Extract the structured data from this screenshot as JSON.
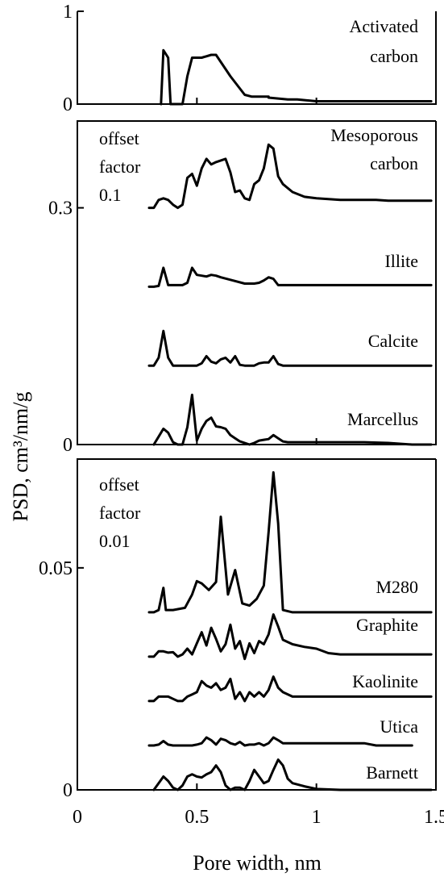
{
  "chart_data": {
    "type": "line",
    "ylabel": "PSD, cm³/nm/g",
    "xlabel": "Pore width, nm",
    "xlim": [
      0,
      1.5
    ],
    "xticks": [
      {
        "value": 0,
        "label": "0"
      },
      {
        "value": 0.5,
        "label": "0.5"
      },
      {
        "value": 1,
        "label": "1"
      },
      {
        "value": 1.5,
        "label": "1.5"
      }
    ],
    "panels": [
      {
        "name": "activated",
        "ylim": [
          0,
          1
        ],
        "yticks": [
          {
            "value": 0,
            "label": "0"
          },
          {
            "value": 1,
            "label": "1"
          }
        ],
        "annotation": [],
        "series": [
          {
            "name": "Activated carbon",
            "label_lines": [
              "Activated",
              "carbon"
            ],
            "x": [
              0.35,
              0.36,
              0.38,
              0.39,
              0.44,
              0.46,
              0.48,
              0.52,
              0.56,
              0.58,
              0.64,
              0.7,
              0.73,
              0.8,
              0.8,
              0.88,
              0.92,
              1.0,
              1.1,
              1.2,
              1.3,
              1.48
            ],
            "y": [
              0,
              0.58,
              0.5,
              0,
              0,
              0.3,
              0.5,
              0.5,
              0.53,
              0.53,
              0.3,
              0.1,
              0.08,
              0.08,
              0.07,
              0.05,
              0.05,
              0.03,
              0.03,
              0.03,
              0.03,
              0.03
            ]
          }
        ]
      },
      {
        "name": "offset-0.1",
        "ylim": [
          0,
          0.41
        ],
        "yticks": [
          {
            "value": 0,
            "label": "0"
          },
          {
            "value": 0.3,
            "label": "0.3"
          }
        ],
        "annotation": [
          "offset",
          "factor",
          "0.1"
        ],
        "series": [
          {
            "name": "Mesoporous carbon",
            "label_lines": [
              "Mesoporous",
              "carbon"
            ],
            "offset": 0.3,
            "x": [
              0.3,
              0.32,
              0.34,
              0.36,
              0.38,
              0.4,
              0.42,
              0.44,
              0.46,
              0.48,
              0.5,
              0.52,
              0.54,
              0.56,
              0.58,
              0.6,
              0.62,
              0.64,
              0.66,
              0.68,
              0.7,
              0.72,
              0.74,
              0.76,
              0.78,
              0.8,
              0.82,
              0.84,
              0.86,
              0.9,
              0.95,
              1.0,
              1.1,
              1.2,
              1.25,
              1.3,
              1.4,
              1.48
            ],
            "y": [
              0,
              0,
              0.01,
              0.012,
              0.01,
              0.004,
              0,
              0.004,
              0.038,
              0.043,
              0.028,
              0.05,
              0.062,
              0.055,
              0.058,
              0.06,
              0.062,
              0.045,
              0.02,
              0.022,
              0.012,
              0.01,
              0.03,
              0.035,
              0.05,
              0.08,
              0.075,
              0.04,
              0.03,
              0.02,
              0.014,
              0.012,
              0.01,
              0.01,
              0.01,
              0.009,
              0.009,
              0.009
            ]
          },
          {
            "name": "Illite",
            "label_lines": [
              "Illite"
            ],
            "offset": 0.2,
            "x": [
              0.3,
              0.32,
              0.34,
              0.36,
              0.38,
              0.4,
              0.42,
              0.44,
              0.46,
              0.48,
              0.5,
              0.52,
              0.54,
              0.56,
              0.58,
              0.6,
              0.65,
              0.7,
              0.72,
              0.74,
              0.76,
              0.78,
              0.8,
              0.82,
              0.84,
              0.86,
              0.9,
              0.95,
              1.0,
              1.1,
              1.2,
              1.25,
              1.3,
              1.4,
              1.48
            ],
            "y": [
              0,
              0,
              0.001,
              0.024,
              0.002,
              0.002,
              0.002,
              0.002,
              0.005,
              0.024,
              0.015,
              0.014,
              0.013,
              0.015,
              0.014,
              0.012,
              0.008,
              0.004,
              0.004,
              0.004,
              0.005,
              0.008,
              0.012,
              0.01,
              0.002,
              0.002,
              0.002,
              0.002,
              0.002,
              0.002,
              0.002,
              0.002,
              0.002,
              0.002,
              0.002
            ]
          },
          {
            "name": "Calcite",
            "label_lines": [
              "Calcite"
            ],
            "offset": 0.1,
            "x": [
              0.3,
              0.32,
              0.34,
              0.36,
              0.38,
              0.4,
              0.42,
              0.44,
              0.46,
              0.48,
              0.5,
              0.52,
              0.54,
              0.56,
              0.58,
              0.6,
              0.62,
              0.64,
              0.66,
              0.68,
              0.7,
              0.72,
              0.74,
              0.76,
              0.78,
              0.8,
              0.82,
              0.84,
              0.86,
              0.9,
              0.95,
              1.0,
              1.1,
              1.2,
              1.25,
              1.3,
              1.4,
              1.48
            ],
            "y": [
              0,
              0,
              0.01,
              0.044,
              0.01,
              0,
              0,
              0,
              0,
              0,
              0,
              0.003,
              0.012,
              0.005,
              0.003,
              0.008,
              0.01,
              0.004,
              0.012,
              0.001,
              0,
              0,
              0,
              0.003,
              0.004,
              0.004,
              0.012,
              0.002,
              0,
              0,
              0,
              0,
              0,
              0,
              0,
              0,
              0,
              0
            ]
          },
          {
            "name": "Marcellus",
            "label_lines": [
              "Marcellus"
            ],
            "offset": 0,
            "x": [
              0.32,
              0.34,
              0.36,
              0.38,
              0.4,
              0.42,
              0.44,
              0.46,
              0.48,
              0.5,
              0.52,
              0.54,
              0.56,
              0.58,
              0.6,
              0.62,
              0.64,
              0.66,
              0.68,
              0.7,
              0.72,
              0.74,
              0.76,
              0.78,
              0.8,
              0.82,
              0.84,
              0.86,
              0.88,
              0.9,
              1.0,
              1.1,
              1.2,
              1.3,
              1.4,
              1.48
            ],
            "y": [
              0,
              0.01,
              0.02,
              0.015,
              0.003,
              0,
              0,
              0.022,
              0.063,
              0.005,
              0.02,
              0.03,
              0.034,
              0.023,
              0.022,
              0.02,
              0.012,
              0.008,
              0.004,
              0.002,
              0,
              0.002,
              0.005,
              0.006,
              0.007,
              0.012,
              0.008,
              0.004,
              0.003,
              0.003,
              0.003,
              0.003,
              0.003,
              0.002,
              0,
              0
            ]
          }
        ]
      },
      {
        "name": "offset-0.01",
        "ylim": [
          0,
          0.0745
        ],
        "yticks": [
          {
            "value": 0,
            "label": "0"
          },
          {
            "value": 0.05,
            "label": "0.05"
          }
        ],
        "annotation": [
          "offset",
          "factor",
          "0.01"
        ],
        "series": [
          {
            "name": "M280",
            "label_lines": [
              "M280"
            ],
            "offset": 0.04,
            "x": [
              0.3,
              0.32,
              0.34,
              0.36,
              0.37,
              0.4,
              0.45,
              0.48,
              0.5,
              0.52,
              0.55,
              0.58,
              0.6,
              0.63,
              0.66,
              0.69,
              0.72,
              0.75,
              0.78,
              0.8,
              0.82,
              0.84,
              0.86,
              0.9,
              1.0,
              1.1,
              1.2,
              1.3,
              1.4,
              1.48
            ],
            "y": [
              0,
              0,
              0.0005,
              0.0055,
              0.0005,
              0.0005,
              0.001,
              0.004,
              0.007,
              0.0065,
              0.005,
              0.0068,
              0.0215,
              0.004,
              0.0095,
              0.002,
              0.0015,
              0.003,
              0.006,
              0.018,
              0.0315,
              0.02,
              0.0005,
              0,
              0,
              0,
              0,
              0,
              0,
              0
            ]
          },
          {
            "name": "Graphite",
            "label_lines": [
              "Graphite"
            ],
            "offset": 0.03,
            "x": [
              0.3,
              0.32,
              0.34,
              0.36,
              0.38,
              0.4,
              0.42,
              0.44,
              0.46,
              0.48,
              0.5,
              0.52,
              0.54,
              0.56,
              0.58,
              0.6,
              0.62,
              0.64,
              0.66,
              0.68,
              0.7,
              0.72,
              0.74,
              0.76,
              0.78,
              0.8,
              0.82,
              0.84,
              0.86,
              0.9,
              0.95,
              1.0,
              1.05,
              1.1,
              1.2,
              1.3,
              1.4,
              1.48
            ],
            "y": [
              0,
              0,
              0.0012,
              0.0012,
              0.0009,
              0.001,
              0,
              0.0005,
              0.0018,
              0.0005,
              0.003,
              0.0055,
              0.0025,
              0.0065,
              0.004,
              0.0012,
              0.0028,
              0.0072,
              0.0018,
              0.0035,
              -0.0005,
              0.003,
              0.0008,
              0.0035,
              0.0028,
              0.005,
              0.0095,
              0.0068,
              0.0038,
              0.0028,
              0.0022,
              0.0018,
              0.0008,
              0.0005,
              0.0005,
              0.0005,
              0.0005,
              0.0005
            ]
          },
          {
            "name": "Kaolinite",
            "label_lines": [
              "Kaolinite"
            ],
            "offset": 0.02,
            "x": [
              0.3,
              0.32,
              0.34,
              0.36,
              0.38,
              0.4,
              0.42,
              0.44,
              0.46,
              0.48,
              0.5,
              0.52,
              0.54,
              0.56,
              0.58,
              0.6,
              0.62,
              0.64,
              0.66,
              0.68,
              0.7,
              0.72,
              0.74,
              0.76,
              0.78,
              0.8,
              0.82,
              0.84,
              0.86,
              0.9,
              0.95,
              1.0,
              1.1,
              1.2,
              1.3,
              1.4,
              1.48
            ],
            "y": [
              0,
              0,
              0.001,
              0.001,
              0.001,
              0.0005,
              0,
              0,
              0.001,
              0.0015,
              0.002,
              0.0045,
              0.0035,
              0.003,
              0.004,
              0.0025,
              0.003,
              0.005,
              0.0005,
              0.002,
              0,
              0.002,
              0.001,
              0.002,
              0.001,
              0.0025,
              0.0055,
              0.003,
              0.002,
              0.001,
              0.001,
              0.001,
              0.001,
              0.001,
              0.001,
              0.001,
              0.001
            ]
          },
          {
            "name": "Utica",
            "label_lines": [
              "Utica"
            ],
            "offset": 0.01,
            "x": [
              0.3,
              0.32,
              0.34,
              0.36,
              0.38,
              0.4,
              0.45,
              0.48,
              0.5,
              0.52,
              0.54,
              0.56,
              0.58,
              0.6,
              0.62,
              0.64,
              0.66,
              0.68,
              0.7,
              0.72,
              0.74,
              0.76,
              0.78,
              0.8,
              0.82,
              0.84,
              0.86,
              0.9,
              1.0,
              1.1,
              1.2,
              1.25,
              1.3,
              1.4
            ],
            "y": [
              0,
              0,
              0.0002,
              0.001,
              0.0002,
              0,
              0,
              0,
              0.0002,
              0.0005,
              0.0018,
              0.0012,
              0.0002,
              0.0015,
              0.0012,
              0.0005,
              0.0002,
              0.0008,
              0,
              0.0002,
              0.0002,
              0.0005,
              0,
              0.0005,
              0.0018,
              0.0012,
              0.0005,
              0.0005,
              0.0005,
              0.0005,
              0.0005,
              0,
              0,
              0
            ]
          },
          {
            "name": "Barnett",
            "label_lines": [
              "Barnett"
            ],
            "offset": 0,
            "x": [
              0.32,
              0.34,
              0.36,
              0.38,
              0.4,
              0.42,
              0.44,
              0.46,
              0.48,
              0.5,
              0.52,
              0.54,
              0.56,
              0.58,
              0.6,
              0.62,
              0.64,
              0.66,
              0.68,
              0.7,
              0.72,
              0.74,
              0.76,
              0.78,
              0.8,
              0.82,
              0.84,
              0.86,
              0.88,
              0.9,
              0.95,
              1.0,
              1.1,
              1.2,
              1.3,
              1.4,
              1.48
            ],
            "y": [
              0,
              0.0015,
              0.003,
              0.002,
              0.0005,
              0,
              0.001,
              0.003,
              0.0035,
              0.003,
              0.0028,
              0.0035,
              0.004,
              0.0055,
              0.004,
              0.001,
              0,
              0.0005,
              0.0005,
              0,
              0.002,
              0.0045,
              0.003,
              0.0015,
              0.002,
              0.0045,
              0.0068,
              0.0055,
              0.0025,
              0.0015,
              0.0008,
              0.0002,
              0,
              0,
              0,
              0,
              0
            ]
          }
        ]
      }
    ]
  }
}
